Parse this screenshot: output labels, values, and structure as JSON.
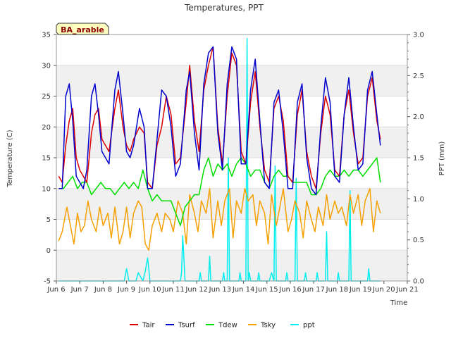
{
  "chart_data": {
    "type": "line",
    "title": "Temperatures, PPT",
    "xlabel": "Time",
    "ylabel_left": "Temperature (C)",
    "ylabel_right": "PPT (mm)",
    "badge": "BA_arable",
    "xlim": [
      6,
      21
    ],
    "ylim_left": [
      -5,
      35
    ],
    "ylim_right": [
      0,
      3
    ],
    "x_ticks": [
      6,
      7,
      8,
      9,
      10,
      11,
      12,
      13,
      14,
      15,
      16,
      17,
      18,
      19,
      20,
      21
    ],
    "x_tick_labels": [
      "Jun 6",
      "Jun 7",
      "Jun 8",
      "Jun 9",
      "Jun 10",
      "Jun 11",
      "Jun 12",
      "Jun 13",
      "Jun 14",
      "Jun 15",
      "Jun 16",
      "Jun 17",
      "Jun 18",
      "Jun 19",
      "Jun 20",
      "Jun 21"
    ],
    "y_ticks_left": [
      -5,
      0,
      5,
      10,
      15,
      20,
      25,
      30,
      35
    ],
    "y_ticks_right": [
      0.0,
      0.5,
      1.0,
      1.5,
      2.0,
      2.5,
      3.0
    ],
    "grid": "horizontal bands",
    "legend_position": "bottom",
    "series": [
      {
        "name": "Tair",
        "color": "#dd0000",
        "axis": "left",
        "x": [
          6.1,
          6.25,
          6.4,
          6.55,
          6.7,
          6.85,
          7.0,
          7.15,
          7.3,
          7.5,
          7.65,
          7.8,
          7.95,
          8.1,
          8.25,
          8.5,
          8.65,
          8.85,
          9.0,
          9.15,
          9.3,
          9.55,
          9.75,
          9.9,
          10.1,
          10.3,
          10.5,
          10.7,
          10.9,
          11.1,
          11.3,
          11.55,
          11.7,
          11.9,
          12.1,
          12.3,
          12.5,
          12.7,
          12.9,
          13.1,
          13.3,
          13.5,
          13.7,
          13.9,
          14.1,
          14.3,
          14.5,
          14.7,
          14.9,
          15.1,
          15.3,
          15.5,
          15.7,
          15.9,
          16.1,
          16.3,
          16.5,
          16.7,
          16.9,
          17.1,
          17.3,
          17.5,
          17.7,
          17.9,
          18.1,
          18.3,
          18.5,
          18.7,
          18.9,
          19.1,
          19.3,
          19.5,
          19.7,
          19.85
        ],
        "y": [
          12,
          11,
          17,
          21,
          23,
          15,
          13,
          12,
          11,
          19,
          22,
          23,
          18,
          17,
          16,
          23,
          26,
          20,
          17,
          16,
          18,
          20,
          19,
          11,
          10,
          17,
          20,
          25,
          22,
          14,
          15,
          24,
          30,
          21,
          16,
          26,
          30,
          33,
          20,
          14,
          25,
          32,
          30,
          16,
          14,
          24,
          29,
          20,
          13,
          11,
          23,
          25,
          21,
          12,
          11,
          22,
          26,
          16,
          12,
          10,
          19,
          25,
          22,
          13,
          12,
          22,
          26,
          19,
          14,
          15,
          25,
          28,
          21,
          18
        ]
      },
      {
        "name": "Tsurf",
        "color": "#0000cc",
        "axis": "left",
        "x": [
          6.1,
          6.25,
          6.4,
          6.55,
          6.7,
          6.85,
          7.0,
          7.15,
          7.3,
          7.5,
          7.65,
          7.8,
          7.95,
          8.1,
          8.25,
          8.5,
          8.65,
          8.85,
          9.0,
          9.15,
          9.3,
          9.55,
          9.75,
          9.9,
          10.1,
          10.3,
          10.5,
          10.7,
          10.9,
          11.1,
          11.3,
          11.55,
          11.7,
          11.9,
          12.1,
          12.3,
          12.5,
          12.7,
          12.9,
          13.1,
          13.3,
          13.5,
          13.7,
          13.9,
          14.1,
          14.3,
          14.5,
          14.7,
          14.9,
          15.1,
          15.3,
          15.5,
          15.7,
          15.9,
          16.1,
          16.3,
          16.5,
          16.7,
          16.9,
          17.1,
          17.3,
          17.5,
          17.7,
          17.9,
          18.1,
          18.3,
          18.5,
          18.7,
          18.9,
          19.1,
          19.3,
          19.5,
          19.7,
          19.85
        ],
        "y": [
          10,
          10,
          25,
          27,
          21,
          12,
          11,
          10,
          13,
          25,
          27,
          22,
          16,
          15,
          14,
          26,
          29,
          22,
          16,
          15,
          17,
          23,
          20,
          10,
          10,
          18,
          26,
          25,
          20,
          12,
          14,
          26,
          29,
          19,
          13,
          27,
          32,
          33,
          19,
          13,
          27,
          33,
          31,
          14,
          14,
          26,
          31,
          21,
          11,
          10,
          24,
          26,
          19,
          10,
          10,
          24,
          27,
          15,
          10,
          9,
          20,
          28,
          24,
          12,
          11,
          22,
          28,
          20,
          13,
          14,
          26,
          29,
          22,
          17
        ]
      },
      {
        "name": "Tdew",
        "color": "#00dd00",
        "axis": "left",
        "x": [
          6.1,
          6.3,
          6.5,
          6.7,
          6.9,
          7.1,
          7.3,
          7.5,
          7.7,
          7.9,
          8.1,
          8.3,
          8.5,
          8.7,
          8.9,
          9.1,
          9.3,
          9.5,
          9.7,
          9.9,
          10.1,
          10.3,
          10.5,
          10.7,
          10.9,
          11.1,
          11.3,
          11.5,
          11.7,
          11.9,
          12.1,
          12.3,
          12.5,
          12.7,
          12.9,
          13.1,
          13.3,
          13.5,
          13.7,
          13.9,
          14.1,
          14.3,
          14.5,
          14.7,
          14.9,
          15.1,
          15.3,
          15.5,
          15.7,
          15.9,
          16.1,
          16.3,
          16.5,
          16.7,
          16.9,
          17.1,
          17.3,
          17.5,
          17.7,
          17.9,
          18.1,
          18.3,
          18.5,
          18.7,
          18.9,
          19.1,
          19.3,
          19.5,
          19.7,
          19.85
        ],
        "y": [
          10,
          10,
          11,
          12,
          10,
          11,
          11,
          9,
          10,
          11,
          10,
          10,
          9,
          10,
          11,
          10,
          11,
          10,
          13,
          10,
          8,
          9,
          8,
          8,
          8,
          6,
          4,
          7,
          8,
          9,
          9,
          13,
          15,
          12,
          14,
          13,
          14,
          12,
          14,
          15,
          14,
          12,
          13,
          13,
          11,
          10,
          12,
          13,
          12,
          12,
          11,
          11,
          11,
          11,
          9,
          9,
          10,
          12,
          13,
          12,
          12,
          13,
          12,
          13,
          13,
          12,
          13,
          14,
          15,
          11
        ]
      },
      {
        "name": "Tsky",
        "color": "#f5a000",
        "axis": "left",
        "x": [
          6.1,
          6.25,
          6.45,
          6.6,
          6.75,
          6.9,
          7.05,
          7.2,
          7.35,
          7.5,
          7.7,
          7.85,
          8.0,
          8.2,
          8.35,
          8.5,
          8.7,
          8.85,
          9.0,
          9.15,
          9.3,
          9.5,
          9.65,
          9.8,
          9.95,
          10.1,
          10.3,
          10.5,
          10.65,
          10.85,
          11.0,
          11.2,
          11.4,
          11.55,
          11.7,
          11.9,
          12.05,
          12.2,
          12.4,
          12.55,
          12.7,
          12.9,
          13.05,
          13.2,
          13.4,
          13.55,
          13.7,
          13.9,
          14.05,
          14.2,
          14.4,
          14.55,
          14.7,
          14.9,
          15.05,
          15.2,
          15.4,
          15.55,
          15.7,
          15.9,
          16.05,
          16.2,
          16.4,
          16.55,
          16.7,
          16.9,
          17.05,
          17.2,
          17.4,
          17.55,
          17.7,
          17.9,
          18.05,
          18.2,
          18.4,
          18.55,
          18.7,
          18.9,
          19.05,
          19.2,
          19.4,
          19.55,
          19.7,
          19.85
        ],
        "y": [
          1.5,
          3,
          7,
          4,
          1,
          6,
          3,
          4,
          8,
          5,
          3,
          7,
          4,
          6,
          2,
          7,
          1,
          3,
          7,
          2,
          6,
          8,
          7,
          1,
          0,
          4,
          6,
          3,
          6,
          5,
          3,
          8,
          6,
          1,
          9,
          6,
          3,
          8,
          6,
          10,
          2,
          8,
          4,
          8,
          10,
          2,
          8,
          6,
          10,
          8,
          9,
          4,
          8,
          6,
          1,
          9,
          4,
          7,
          10,
          3,
          5,
          8,
          6,
          2,
          8,
          5,
          3,
          7,
          4,
          9,
          5,
          8,
          6,
          7,
          4,
          9,
          6,
          9,
          4,
          8,
          10,
          3,
          8,
          6
        ]
      },
      {
        "name": "ppt",
        "color": "#00eeee",
        "axis": "right",
        "x": [
          6.1,
          8.9,
          9.0,
          9.1,
          9.4,
          9.5,
          9.7,
          9.8,
          9.9,
          10.0,
          11.3,
          11.35,
          11.4,
          11.5,
          12.1,
          12.15,
          12.2,
          12.5,
          12.55,
          12.6,
          13.1,
          13.15,
          13.2,
          13.3,
          13.35,
          13.4,
          13.8,
          13.85,
          13.9,
          14.1,
          14.15,
          14.2,
          14.25,
          14.3,
          14.6,
          14.65,
          14.7,
          15.1,
          15.2,
          15.3,
          15.35,
          15.4,
          15.5,
          15.8,
          15.85,
          15.9,
          16.2,
          16.25,
          16.3,
          16.6,
          16.65,
          16.7,
          17.1,
          17.15,
          17.2,
          17.3,
          17.5,
          17.55,
          17.6,
          18.0,
          18.05,
          18.1,
          18.5,
          18.55,
          18.6,
          19.3,
          19.35,
          19.4,
          19.85
        ],
        "y": [
          0,
          0,
          0.15,
          0,
          0,
          0.1,
          0,
          0.12,
          0.28,
          0,
          0,
          0.1,
          0.55,
          0,
          0,
          0.1,
          0,
          0,
          0.3,
          0,
          0,
          0.1,
          0,
          0,
          1.5,
          0,
          0,
          0.1,
          0,
          0,
          2.95,
          0,
          0.1,
          0,
          0,
          0.1,
          0,
          0,
          0.1,
          0,
          1.4,
          0,
          0,
          0,
          0.1,
          0,
          0,
          1.25,
          0,
          0,
          0.1,
          0,
          0,
          0.1,
          0,
          0,
          0,
          0.6,
          0,
          0,
          0.1,
          0,
          0,
          1.1,
          0,
          0,
          0.15,
          0,
          0
        ]
      }
    ]
  }
}
